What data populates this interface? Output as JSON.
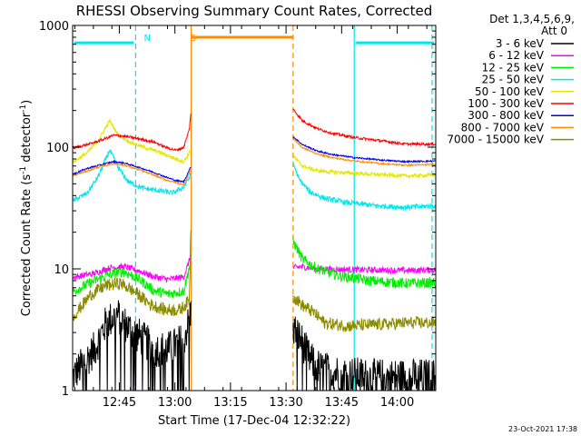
{
  "chart_data": {
    "type": "line",
    "title": "RHESSI Observing Summary Count Rates, Corrected",
    "xlabel": "Start Time (17-Dec-04 12:32:22)",
    "ylabel_main": "Corrected Count Rate (s",
    "ylabel_sup1": "-1",
    "ylabel_mid": " detector",
    "ylabel_sup2": "-1",
    "ylabel_end": ")",
    "y_scale": "log",
    "ylim": [
      1,
      1000
    ],
    "y_ticks": [
      {
        "v": 1,
        "label": "1"
      },
      {
        "v": 10,
        "label": "10"
      },
      {
        "v": 100,
        "label": "100"
      },
      {
        "v": 1000,
        "label": "1000"
      }
    ],
    "xlim_min": [
      0,
      98
    ],
    "x_ticks": [
      {
        "v": 12.6,
        "label": "12:45"
      },
      {
        "v": 27.6,
        "label": "13:00"
      },
      {
        "v": 42.6,
        "label": "13:15"
      },
      {
        "v": 57.6,
        "label": "13:30"
      },
      {
        "v": 72.6,
        "label": "13:45"
      },
      {
        "v": 87.6,
        "label": "14:00"
      }
    ],
    "grid": false,
    "legend_placement": "right",
    "legend_header": [
      "Det 1,3,4,5,6,9,",
      "Att 0"
    ],
    "footer": "23-Oct-2021 17:38",
    "gap_min": [
      32,
      59.5
    ],
    "series": [
      {
        "name": "3 - 6 keV",
        "color": "#000000",
        "seg1": [
          [
            0,
            1.3
          ],
          [
            6,
            2.2
          ],
          [
            9,
            3.6
          ],
          [
            12,
            4.2
          ],
          [
            15,
            3.3
          ],
          [
            18,
            2.8
          ],
          [
            22,
            2.2
          ],
          [
            26,
            2.2
          ],
          [
            30,
            2.6
          ],
          [
            32,
            4.5
          ]
        ],
        "seg2": [
          [
            59.5,
            3.3
          ],
          [
            62,
            2.5
          ],
          [
            64,
            1.8
          ],
          [
            67,
            1.5
          ],
          [
            72,
            1.4
          ],
          [
            80,
            1.3
          ],
          [
            90,
            1.3
          ],
          [
            98,
            1.3
          ]
        ]
      },
      {
        "name": "6 - 12 keV",
        "color": "#ff00ff",
        "seg1": [
          [
            0,
            8.5
          ],
          [
            6,
            9.2
          ],
          [
            10,
            10.2
          ],
          [
            14,
            10.4
          ],
          [
            18,
            9.6
          ],
          [
            22,
            8.6
          ],
          [
            26,
            8.2
          ],
          [
            30,
            8.6
          ],
          [
            32,
            13
          ]
        ],
        "seg2": [
          [
            59.5,
            10.2
          ],
          [
            62,
            10.4
          ],
          [
            66,
            10
          ],
          [
            72,
            9.9
          ],
          [
            80,
            9.8
          ],
          [
            90,
            9.7
          ],
          [
            98,
            9.8
          ]
        ]
      },
      {
        "name": "12 - 25 keV",
        "color": "#00ee00",
        "seg1": [
          [
            0,
            6.5
          ],
          [
            6,
            8
          ],
          [
            10,
            9
          ],
          [
            14,
            9.5
          ],
          [
            18,
            8.2
          ],
          [
            22,
            6.6
          ],
          [
            26,
            6.2
          ],
          [
            30,
            6.6
          ],
          [
            32,
            12
          ]
        ],
        "seg2": [
          [
            59.5,
            17
          ],
          [
            62,
            12
          ],
          [
            66,
            10
          ],
          [
            72,
            8.8
          ],
          [
            80,
            8
          ],
          [
            90,
            7.6
          ],
          [
            98,
            7.7
          ]
        ]
      },
      {
        "name": "25 - 50 keV",
        "color": "#00e5ee",
        "seg1": [
          [
            0,
            36
          ],
          [
            4,
            42
          ],
          [
            7,
            58
          ],
          [
            10,
            95
          ],
          [
            12,
            70
          ],
          [
            15,
            52
          ],
          [
            19,
            46
          ],
          [
            23,
            44
          ],
          [
            27,
            42
          ],
          [
            30,
            47
          ],
          [
            32,
            60
          ]
        ],
        "seg2": [
          [
            59.5,
            75
          ],
          [
            61,
            55
          ],
          [
            64,
            43
          ],
          [
            68,
            38
          ],
          [
            74,
            35
          ],
          [
            82,
            33
          ],
          [
            90,
            32
          ],
          [
            98,
            33
          ]
        ]
      },
      {
        "name": "50 - 100 keV",
        "color": "#e5e500",
        "seg1": [
          [
            0,
            75
          ],
          [
            4,
            90
          ],
          [
            7,
            115
          ],
          [
            10,
            165
          ],
          [
            12,
            130
          ],
          [
            15,
            112
          ],
          [
            19,
            100
          ],
          [
            23,
            92
          ],
          [
            27,
            82
          ],
          [
            30,
            76
          ],
          [
            32,
            95
          ]
        ],
        "seg2": [
          [
            59.5,
            85
          ],
          [
            62,
            70
          ],
          [
            66,
            64
          ],
          [
            72,
            62
          ],
          [
            80,
            60
          ],
          [
            90,
            58
          ],
          [
            98,
            59
          ]
        ]
      },
      {
        "name": "100 - 300 keV",
        "color": "#ff0000",
        "seg1": [
          [
            0,
            98
          ],
          [
            4,
            105
          ],
          [
            8,
            115
          ],
          [
            11,
            125
          ],
          [
            14,
            123
          ],
          [
            18,
            117
          ],
          [
            22,
            110
          ],
          [
            25,
            100
          ],
          [
            28,
            94
          ],
          [
            30,
            100
          ],
          [
            31.5,
            140
          ],
          [
            32,
            205
          ]
        ],
        "seg2": [
          [
            59.5,
            205
          ],
          [
            62,
            165
          ],
          [
            66,
            142
          ],
          [
            70,
            130
          ],
          [
            76,
            120
          ],
          [
            84,
            112
          ],
          [
            90,
            106
          ],
          [
            98,
            106
          ]
        ]
      },
      {
        "name": "300 - 800 keV",
        "color": "#0000ee",
        "seg1": [
          [
            0,
            60
          ],
          [
            4,
            67
          ],
          [
            8,
            72
          ],
          [
            11,
            76
          ],
          [
            14,
            74
          ],
          [
            18,
            68
          ],
          [
            22,
            62
          ],
          [
            25,
            57
          ],
          [
            28,
            53
          ],
          [
            30,
            52
          ],
          [
            32,
            70
          ]
        ],
        "seg2": [
          [
            59.5,
            122
          ],
          [
            62,
            105
          ],
          [
            66,
            93
          ],
          [
            70,
            87
          ],
          [
            76,
            82
          ],
          [
            84,
            78
          ],
          [
            90,
            76
          ],
          [
            98,
            77
          ]
        ]
      },
      {
        "name": "800 - 7000 keV",
        "color": "#ff8c00",
        "seg1": [
          [
            0,
            58
          ],
          [
            4,
            64
          ],
          [
            8,
            70
          ],
          [
            11,
            73
          ],
          [
            14,
            71
          ],
          [
            18,
            65
          ],
          [
            22,
            59
          ],
          [
            25,
            54
          ],
          [
            28,
            51
          ],
          [
            30,
            49
          ],
          [
            32,
            66
          ]
        ],
        "seg2": [
          [
            59.5,
            118
          ],
          [
            62,
            99
          ],
          [
            66,
            88
          ],
          [
            70,
            82
          ],
          [
            76,
            77
          ],
          [
            84,
            73
          ],
          [
            90,
            71
          ],
          [
            98,
            72
          ]
        ]
      },
      {
        "name": "7000 - 15000 keV",
        "color": "#8b8b00",
        "seg1": [
          [
            0,
            4
          ],
          [
            5,
            6.2
          ],
          [
            9,
            7.3
          ],
          [
            13,
            7.6
          ],
          [
            17,
            6.4
          ],
          [
            21,
            5.1
          ],
          [
            25,
            4.6
          ],
          [
            29,
            4.6
          ],
          [
            31.5,
            5.5
          ],
          [
            32,
            30
          ]
        ],
        "seg2": [
          [
            59.5,
            6
          ],
          [
            62,
            5
          ],
          [
            65,
            4.4
          ],
          [
            68,
            3.6
          ],
          [
            74,
            3.4
          ],
          [
            84,
            3.5
          ],
          [
            90,
            3.6
          ],
          [
            98,
            3.6
          ]
        ]
      }
    ],
    "annotations": [
      {
        "text": "N",
        "color": "#00e5ee",
        "x": 18
      },
      {
        "text": "S",
        "color": "#ff8c00",
        "x": 30.5
      }
    ],
    "night_bars": [
      {
        "color": "#00e5ee",
        "x0": 0,
        "x1": 17,
        "v": 720
      },
      {
        "color": "#00e5ee",
        "x0": 76,
        "x1": 98,
        "v": 720
      }
    ],
    "saa_bar": {
      "color": "#ff8c00",
      "x0": 32,
      "x1": 59.5,
      "v": 800
    },
    "vlines": [
      {
        "x": 17,
        "color": "#00e5ee",
        "dash": true
      },
      {
        "x": 32,
        "color": "#ff8c00",
        "dash": false
      },
      {
        "x": 59.5,
        "color": "#ff8c00",
        "dash": true
      },
      {
        "x": 76,
        "color": "#00e5ee",
        "dash": false
      },
      {
        "x": 97,
        "color": "#00e5ee",
        "dash": true
      }
    ]
  }
}
